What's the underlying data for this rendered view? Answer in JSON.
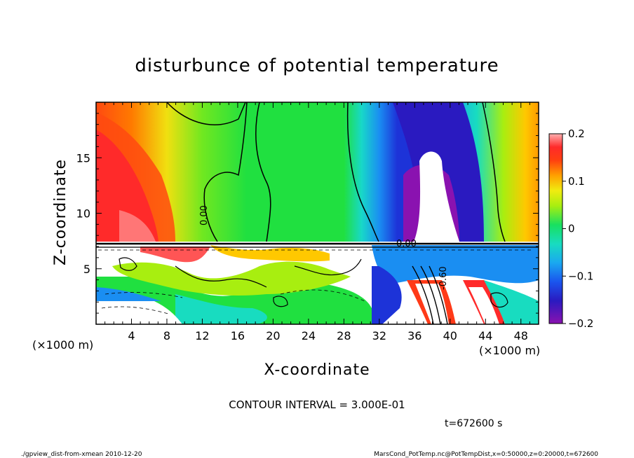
{
  "chart_data": {
    "type": "heatmap",
    "title": "disturbunce of potential temperature",
    "xlabel": "X-coordinate",
    "ylabel": "Z-coordinate",
    "x_unit": "(×1000 m)",
    "x_unit_right": "(×1000 m)",
    "z_unit": "(×1000 m)",
    "xlim": [
      0,
      50
    ],
    "ylim": [
      0,
      20
    ],
    "x_ticks": [
      "4",
      "8",
      "12",
      "16",
      "20",
      "24",
      "28",
      "32",
      "36",
      "40",
      "44",
      "48"
    ],
    "y_ticks": [
      "5",
      "10",
      "15"
    ],
    "colorbar": {
      "range": [
        -0.2,
        0.2
      ],
      "tick_labels": [
        "0.2",
        "0.1",
        "0",
        "−0.1",
        "−0.2"
      ],
      "colors": [
        "#8a12b0",
        "#3a1ab8",
        "#1d33d8",
        "#1a5cf0",
        "#1a8ef2",
        "#19bfe6",
        "#1ad8c0",
        "#18e08a",
        "#20e040",
        "#60e818",
        "#a8ee10",
        "#e8ec10",
        "#ffc800",
        "#ff9a00",
        "#ff6a00",
        "#ff3a18",
        "#ff2a2a",
        "#ff7e7e",
        "#ffb0b0"
      ]
    },
    "contour_labels": [
      "0.00",
      "0.00",
      "-0.60"
    ],
    "contour_interval": "CONTOUR INTERVAL = 3.000E-01",
    "time": "t=672600 s"
  },
  "footer": {
    "left": "./gpview_dist-from-xmean  2010-12-20",
    "right": "MarsCond_PotTemp.nc@PotTempDist,x=0:50000,z=0:20000,t=672600"
  }
}
